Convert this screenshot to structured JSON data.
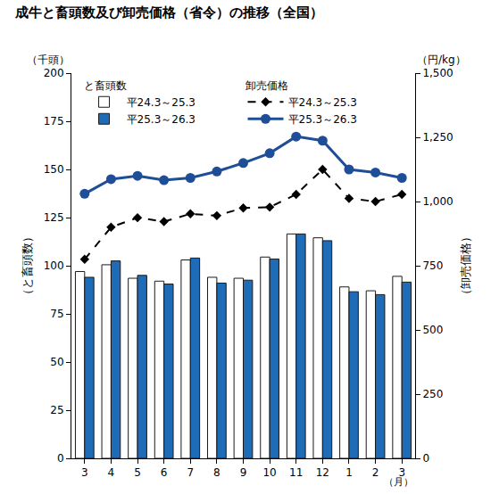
{
  "chart_data": {
    "type": "bar",
    "title": "成牛と畜頭数及び卸売価格（省令）の推移（全国）",
    "categories": [
      "3",
      "4",
      "5",
      "6",
      "7",
      "8",
      "9",
      "10",
      "11",
      "12",
      "1",
      "2",
      "3"
    ],
    "x_unit": "（月）",
    "y_label": "（と畜頭数）",
    "y_unit": "（千頭）",
    "y2_label": "（卸売価格）",
    "y2_unit": "（円/kg）",
    "ylim": [
      0,
      200
    ],
    "yticks": [
      0,
      25,
      50,
      75,
      100,
      125,
      150,
      175,
      200
    ],
    "y2lim": [
      0,
      1500
    ],
    "y2ticks": [
      0,
      250,
      500,
      750,
      {
        "value": 1000,
        "label": "1,000"
      },
      {
        "value": 1250,
        "label": "1,250"
      },
      {
        "value": 1500,
        "label": "1,500"
      }
    ],
    "grid": false,
    "legend": "top",
    "series": [
      {
        "name": "平24.3～25.3",
        "group": "と畜頭数",
        "type": "bar",
        "color": "#ffffff",
        "values": [
          97,
          100.5,
          93.5,
          92,
          103,
          94,
          93.5,
          104.5,
          116.5,
          114.5,
          89,
          87,
          94.5
        ]
      },
      {
        "name": "平25.3～26.3",
        "group": "と畜頭数",
        "type": "bar",
        "color": "#1e6bb8",
        "values": [
          94,
          102.5,
          95,
          90.5,
          104,
          91,
          92.5,
          103.5,
          116.5,
          113,
          86.5,
          85,
          91.5
        ]
      },
      {
        "name": "平24.3～25.3",
        "group": "卸売価格",
        "type": "line",
        "axis": "y2",
        "color": "#000000",
        "line_style": "dashed",
        "marker": "diamond",
        "values": [
          775,
          900,
          937,
          922,
          952,
          945,
          975,
          978,
          1028,
          1125,
          1012,
          1000,
          1028
        ]
      },
      {
        "name": "平25.3～26.3",
        "group": "卸売価格",
        "type": "line",
        "axis": "y2",
        "color": "#1f4e99",
        "line_style": "solid",
        "marker": "circle",
        "values": [
          1030,
          1087,
          1100,
          1083,
          1092,
          1117,
          1150,
          1188,
          1253,
          1237,
          1125,
          1113,
          1092
        ]
      }
    ]
  }
}
